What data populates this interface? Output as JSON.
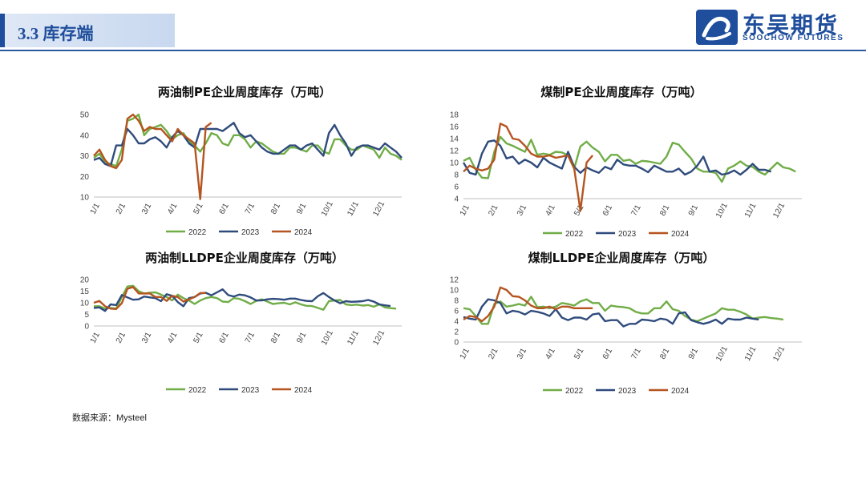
{
  "header": {
    "section_title": "3.3 库存端",
    "logo_cn": "东吴期货",
    "logo_en": "SOOCHOW FUTURES"
  },
  "colors": {
    "y2022": "#70ad47",
    "y2023": "#2f4b7c",
    "y2024": "#b5541f",
    "brand": "#1f4e9c"
  },
  "source_text": "数据来源：Mysteel",
  "legend": [
    "2022",
    "2023",
    "2024"
  ],
  "chart_data": [
    {
      "type": "line",
      "title": "两油制PE企业周度库存（万吨）",
      "xlabel": "",
      "ylabel": "",
      "x_ticks": [
        "1/1",
        "2/1",
        "3/1",
        "4/1",
        "5/1",
        "6/1",
        "7/1",
        "8/1",
        "9/1",
        "10/1",
        "11/1",
        "12/1"
      ],
      "ylim": [
        10,
        50
      ],
      "y_ticks": [
        10,
        20,
        30,
        40,
        50
      ],
      "series": [
        {
          "name": "2022",
          "values": [
            29,
            31,
            27,
            26,
            25,
            33,
            47,
            48,
            50,
            40,
            43,
            44,
            45,
            42,
            38,
            40,
            41,
            37,
            35,
            32,
            36,
            41,
            40,
            36,
            35,
            40,
            40,
            38,
            34,
            37,
            36,
            34,
            32,
            31,
            31,
            34,
            34,
            33,
            32,
            35,
            35,
            32,
            31,
            38,
            38,
            35,
            33,
            33,
            35,
            34,
            33,
            29,
            34,
            31,
            30,
            28
          ]
        },
        {
          "name": "2023",
          "values": [
            28,
            29,
            26,
            25,
            35,
            35,
            43,
            40,
            36,
            36,
            38,
            39,
            37,
            34,
            39,
            42,
            40,
            36,
            34,
            43,
            43,
            43,
            43,
            42,
            44,
            46,
            41,
            39,
            40,
            37,
            34,
            32,
            31,
            31,
            33,
            35,
            35,
            33,
            35,
            36,
            33,
            30,
            41,
            45,
            40,
            36,
            30,
            34,
            35,
            35,
            34,
            33,
            36,
            34,
            32,
            29
          ]
        },
        {
          "name": "2024",
          "values": [
            30,
            33,
            28,
            25,
            24,
            28,
            48,
            50,
            47,
            42,
            44,
            43,
            43,
            40,
            37,
            43,
            40,
            38,
            36,
            9,
            44,
            46
          ]
        }
      ]
    },
    {
      "type": "line",
      "title": "煤制PE企业周度库存（万吨）",
      "xlabel": "",
      "ylabel": "",
      "x_ticks": [
        "1/1",
        "2/1",
        "3/1",
        "4/1",
        "5/1",
        "6/1",
        "7/1",
        "8/1",
        "9/1",
        "10/1",
        "11/1",
        "12/1"
      ],
      "ylim": [
        4,
        18
      ],
      "y_ticks": [
        4,
        6,
        8,
        10,
        12,
        14,
        16,
        18
      ],
      "series": [
        {
          "name": "2022",
          "values": [
            10.3,
            10.8,
            8.8,
            7.5,
            7.4,
            11.8,
            14.3,
            13.2,
            12.8,
            12.3,
            11.8,
            13.8,
            11.3,
            11.5,
            11.3,
            11.8,
            11.7,
            11.2,
            9.0,
            12.7,
            13.5,
            12.5,
            11.8,
            10.2,
            11.3,
            11.3,
            10.3,
            10.5,
            9.8,
            10.3,
            10.2,
            10.0,
            9.8,
            11.0,
            13.3,
            13.0,
            11.8,
            10.7,
            9.0,
            8.5,
            8.5,
            8.3,
            6.8,
            9.0,
            9.5,
            10.2,
            9.5,
            9.3,
            8.5,
            8.0,
            9.0,
            10.0,
            9.2,
            9.0,
            8.5
          ]
        },
        {
          "name": "2023",
          "values": [
            10.0,
            8.3,
            8.0,
            11.5,
            13.5,
            13.7,
            12.8,
            10.7,
            11.0,
            9.8,
            10.5,
            10.0,
            9.2,
            10.8,
            10.0,
            9.5,
            9.0,
            11.8,
            9.3,
            8.3,
            9.2,
            8.7,
            8.3,
            9.3,
            8.9,
            10.5,
            9.7,
            9.5,
            9.5,
            9.0,
            8.4,
            9.5,
            9.0,
            8.5,
            8.5,
            9.0,
            8.0,
            8.5,
            9.5,
            11.0,
            8.5,
            8.7,
            8.0,
            8.2,
            8.7,
            8.0,
            8.8,
            9.8,
            8.8,
            8.8,
            8.5
          ]
        },
        {
          "name": "2024",
          "values": [
            8.5,
            9.5,
            9.0,
            8.7,
            9.0,
            10.5,
            16.5,
            16.0,
            14.0,
            13.8,
            12.8,
            11.5,
            11.0,
            11.0,
            11.2,
            10.8,
            11.0,
            11.2,
            9.0,
            2.0,
            10.0,
            11.2
          ]
        }
      ]
    },
    {
      "type": "line",
      "title": "两油制LLDPE企业周度库存（万吨）",
      "xlabel": "",
      "ylabel": "",
      "x_ticks": [
        "1/1",
        "2/1",
        "3/1",
        "4/1",
        "5/1",
        "6/1",
        "7/1",
        "8/1",
        "9/1",
        "10/1",
        "11/1",
        "12/1"
      ],
      "ylim": [
        0,
        20
      ],
      "y_ticks": [
        0,
        5,
        10,
        15,
        20
      ],
      "series": [
        {
          "name": "2022",
          "values": [
            8.5,
            8.5,
            7.5,
            7.8,
            7.5,
            12.5,
            17.0,
            17.3,
            15.0,
            14.0,
            14.3,
            14.5,
            13.5,
            12.5,
            11.0,
            13.5,
            12.0,
            11.0,
            9.5,
            11.0,
            12.0,
            12.5,
            12.0,
            10.5,
            10.3,
            12.0,
            11.7,
            10.7,
            9.5,
            10.8,
            11.5,
            10.5,
            9.5,
            9.8,
            10.0,
            9.3,
            10.2,
            9.3,
            8.7,
            8.6,
            7.8,
            7.0,
            10.7,
            11.0,
            11.2,
            9.3,
            9.0,
            9.2,
            8.8,
            9.0,
            8.3,
            9.3,
            8.0,
            7.7,
            7.5
          ]
        },
        {
          "name": "2023",
          "values": [
            7.8,
            8.0,
            6.5,
            9.3,
            9.0,
            13.3,
            12.3,
            11.3,
            11.5,
            12.7,
            12.3,
            12.0,
            10.7,
            13.7,
            13.0,
            10.3,
            8.5,
            12.0,
            12.5,
            14.0,
            14.3,
            13.2,
            14.5,
            15.8,
            13.3,
            12.7,
            13.5,
            13.2,
            12.3,
            11.0,
            11.0,
            11.5,
            11.7,
            11.6,
            11.3,
            11.8,
            11.8,
            11.2,
            10.8,
            10.7,
            12.8,
            14.2,
            12.5,
            11.0,
            9.8,
            10.7,
            10.4,
            10.5,
            10.7,
            11.2,
            10.5,
            9.3,
            8.9,
            8.6
          ]
        },
        {
          "name": "2024",
          "values": [
            10.0,
            10.8,
            8.5,
            7.5,
            7.3,
            9.8,
            16.0,
            16.8,
            14.0,
            14.0,
            14.0,
            12.5,
            12.5,
            10.8,
            13.0,
            12.5,
            10.5,
            11.5,
            12.5,
            14.2,
            14.2
          ]
        }
      ]
    },
    {
      "type": "line",
      "title": "煤制LLDPE企业周度库存（万吨）",
      "xlabel": "",
      "ylabel": "",
      "x_ticks": [
        "1/1",
        "2/1",
        "3/1",
        "4/1",
        "5/1",
        "6/1",
        "7/1",
        "8/1",
        "9/1",
        "10/1",
        "11/1",
        "12/1"
      ],
      "ylim": [
        0,
        12
      ],
      "y_ticks": [
        0,
        2,
        4,
        6,
        8,
        10,
        12
      ],
      "series": [
        {
          "name": "2022",
          "values": [
            6.5,
            6.3,
            5.0,
            3.5,
            3.5,
            7.3,
            7.8,
            6.8,
            7.0,
            7.3,
            7.0,
            8.7,
            6.7,
            6.8,
            6.5,
            6.8,
            7.5,
            7.3,
            7.0,
            7.8,
            8.2,
            7.5,
            7.5,
            6.0,
            7.0,
            6.8,
            6.7,
            6.5,
            5.8,
            5.5,
            5.5,
            6.5,
            6.5,
            7.8,
            6.3,
            6.0,
            5.0,
            4.3,
            4.0,
            4.5,
            5.0,
            5.5,
            6.5,
            6.2,
            6.2,
            5.8,
            5.3,
            4.5,
            4.7,
            4.8,
            4.6,
            4.5,
            4.3
          ]
        },
        {
          "name": "2023",
          "values": [
            4.8,
            4.5,
            4.3,
            6.8,
            8.2,
            8.0,
            7.5,
            5.5,
            6.0,
            5.8,
            5.3,
            6.0,
            5.8,
            5.5,
            5.0,
            6.3,
            4.7,
            4.2,
            4.7,
            4.7,
            4.3,
            5.3,
            5.5,
            4.0,
            4.2,
            4.2,
            3.0,
            3.5,
            3.5,
            4.3,
            4.2,
            4.0,
            4.5,
            4.3,
            3.5,
            5.5,
            5.7,
            4.2,
            3.8,
            3.5,
            3.8,
            4.3,
            3.5,
            4.5,
            4.3,
            4.3,
            4.7,
            4.5,
            4.3
          ]
        },
        {
          "name": "2024",
          "values": [
            4.3,
            5.0,
            4.8,
            4.0,
            5.0,
            6.8,
            10.5,
            10.0,
            8.8,
            8.7,
            8.0,
            7.0,
            6.5,
            6.5,
            6.8,
            6.3,
            6.8,
            6.8,
            6.5,
            6.5,
            6.5,
            6.5
          ]
        }
      ]
    }
  ]
}
